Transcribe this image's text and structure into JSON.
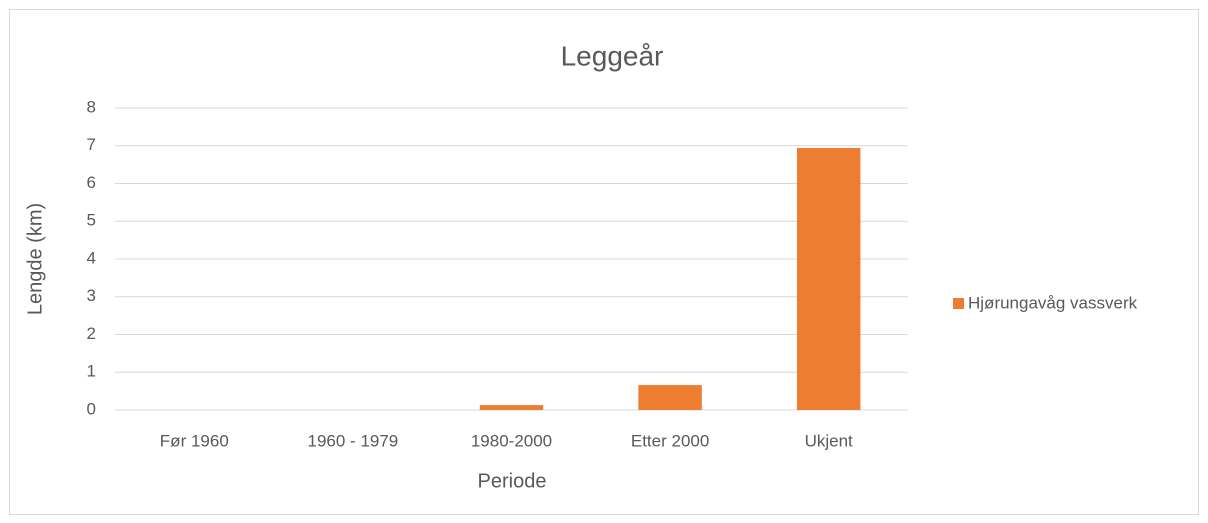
{
  "chart_data": {
    "type": "bar",
    "title": "Leggeår",
    "x_label": "Periode",
    "y_label": "Lengde (km)",
    "categories": [
      "Før 1960",
      "1960 - 1979",
      "1980-2000",
      "Etter 2000",
      "Ukjent"
    ],
    "series": [
      {
        "name": "Hjørungavåg vassverk",
        "color": "#ed7d31",
        "values": [
          0,
          0,
          0.13,
          0.66,
          6.94
        ]
      }
    ],
    "ylim": [
      0,
      8
    ],
    "yticks": [
      0,
      1,
      2,
      3,
      4,
      5,
      6,
      7,
      8
    ],
    "grid": true,
    "legend": "right"
  }
}
